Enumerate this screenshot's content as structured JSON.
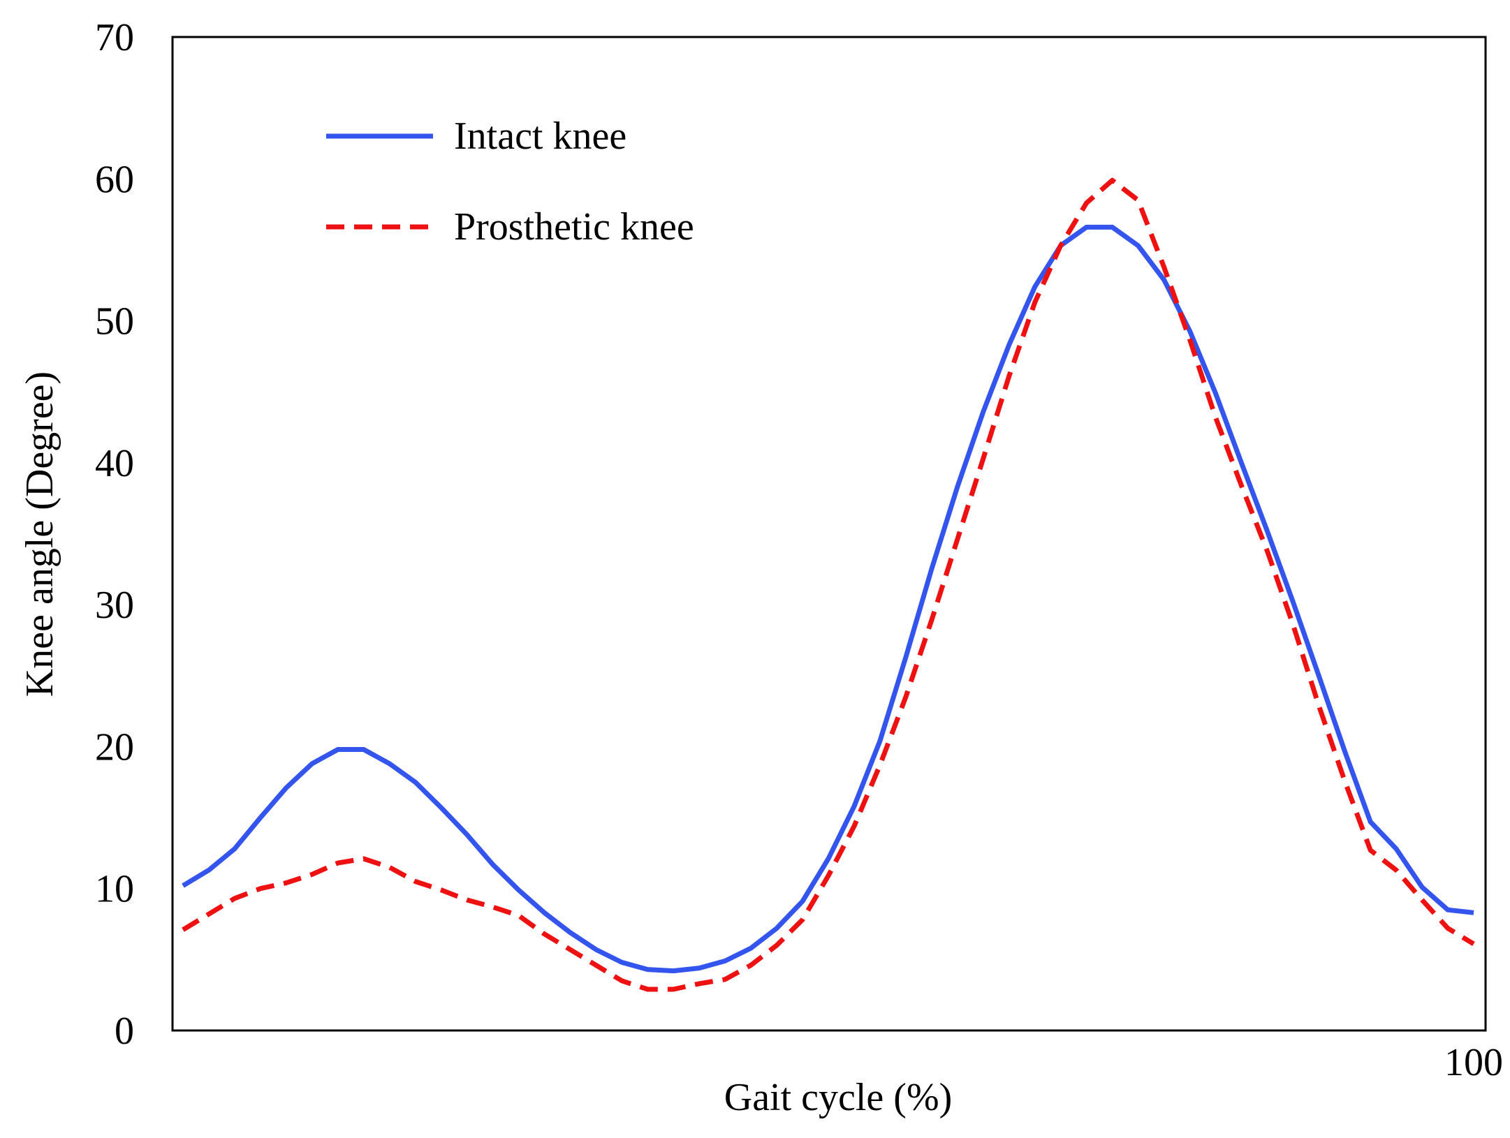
{
  "chart_data": {
    "type": "line",
    "title": "",
    "xlabel": "Gait cycle (%)",
    "ylabel": "Knee angle (Degree)",
    "xlim": [
      0,
      100
    ],
    "ylim": [
      0,
      70
    ],
    "x_tick_labels": [
      {
        "value": 100,
        "label": "100"
      }
    ],
    "y_tick_labels": [
      {
        "value": 0,
        "label": "0"
      },
      {
        "value": 10,
        "label": "10"
      },
      {
        "value": 20,
        "label": "20"
      },
      {
        "value": 30,
        "label": "30"
      },
      {
        "value": 40,
        "label": "40"
      },
      {
        "value": 50,
        "label": "50"
      },
      {
        "value": 60,
        "label": "60"
      },
      {
        "value": 70,
        "label": "70"
      }
    ],
    "grid": false,
    "legend_position": "top-left",
    "series": [
      {
        "name": "Intact knee",
        "color": "#3355ee",
        "style": "solid",
        "x": [
          0,
          2,
          4,
          6,
          8,
          10,
          12,
          14,
          16,
          18,
          20,
          22,
          24,
          26,
          28,
          30,
          32,
          34,
          36,
          38,
          40,
          42,
          44,
          46,
          48,
          50,
          52,
          54,
          56,
          58,
          60,
          62,
          64,
          66,
          68,
          70,
          72,
          74,
          76,
          78,
          80,
          82,
          84,
          86,
          88,
          90,
          92,
          94,
          96,
          98,
          100
        ],
        "y": [
          10.2,
          11.3,
          12.8,
          15,
          17.1,
          18.8,
          19.8,
          19.8,
          18.8,
          17.5,
          15.7,
          13.8,
          11.7,
          9.9,
          8.3,
          6.9,
          5.7,
          4.8,
          4.3,
          4.2,
          4.4,
          4.9,
          5.8,
          7.2,
          9.1,
          12.1,
          15.8,
          20.4,
          26.3,
          32.5,
          38.3,
          43.6,
          48.3,
          52.4,
          55.3,
          56.6,
          56.6,
          55.3,
          52.9,
          49.3,
          44.9,
          40,
          35.2,
          30.2,
          25,
          19.7,
          14.7,
          12.8,
          10.1,
          8.5,
          8.3
        ]
      },
      {
        "name": "Prosthetic knee",
        "color": "#ee1111",
        "style": "dashed",
        "x": [
          0,
          2,
          4,
          6,
          8,
          10,
          12,
          14,
          16,
          18,
          20,
          22,
          24,
          26,
          28,
          30,
          32,
          34,
          36,
          38,
          40,
          42,
          44,
          46,
          48,
          50,
          52,
          54,
          56,
          58,
          60,
          62,
          64,
          66,
          68,
          70,
          72,
          74,
          76,
          78,
          80,
          82,
          84,
          86,
          88,
          90,
          92,
          94,
          96,
          98,
          100
        ],
        "y": [
          7.1,
          8.2,
          9.3,
          10,
          10.4,
          11,
          11.8,
          12.1,
          11.5,
          10.5,
          9.9,
          9.2,
          8.7,
          8.1,
          6.8,
          5.7,
          4.6,
          3.5,
          2.9,
          2.9,
          3.3,
          3.6,
          4.6,
          6,
          7.8,
          10.9,
          14.4,
          18.7,
          23.5,
          28.9,
          34.6,
          40.3,
          46.1,
          51.3,
          55.3,
          58.3,
          59.9,
          58.5,
          53.8,
          48.7,
          43.2,
          38.4,
          33.8,
          28.6,
          22.9,
          17.6,
          12.7,
          11.3,
          9.2,
          7.2,
          6.1
        ]
      }
    ]
  }
}
